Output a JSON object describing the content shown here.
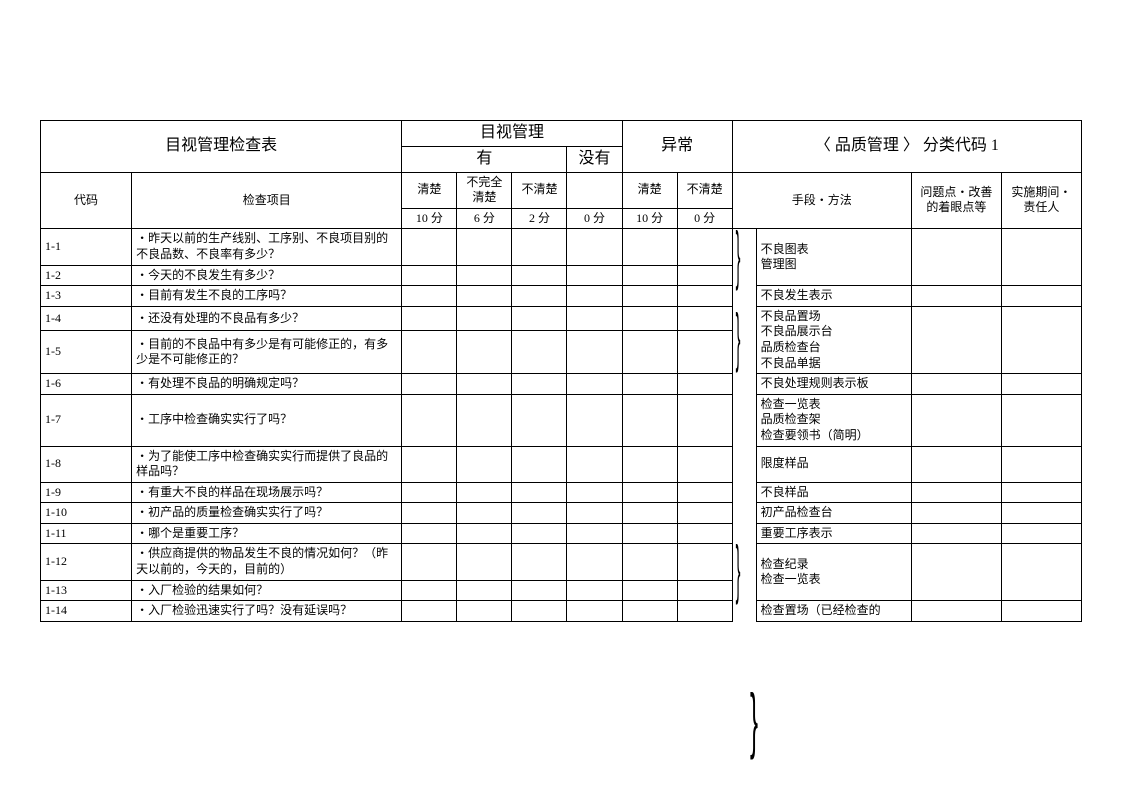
{
  "header": {
    "main_title": "目视管理检查表",
    "group1_top": "目视管理",
    "group1_yes": "有",
    "group1_no": "没有",
    "group2": "异常",
    "right_title": "〈 品质管理 〉  分类代码  1",
    "col_code": "代码",
    "col_item": "检查项目",
    "col_clear": "清楚",
    "col_partial": "不完全清楚",
    "col_unclear": "不清楚",
    "col_10pt": "10 分",
    "col_6pt": "6 分",
    "col_2pt": "2 分",
    "col_0pt": "0 分",
    "col_abn_clear": "清楚",
    "col_abn_unclear": "不清楚",
    "col_abn_10pt": "10 分",
    "col_abn_0pt": "0 分",
    "col_method": "手段・方法",
    "col_issue": "问题点・改善的着眼点等",
    "col_period": "实施期间・责任人"
  },
  "rows": [
    {
      "code": "1-1",
      "item": "・昨天以前的生产线别、工序别、不良项目别的不良品数、不良率有多少？",
      "method": "不良图表",
      "brace_start": true
    },
    {
      "code": "1-2",
      "item": "・今天的不良发生有多少？",
      "method": "管理图",
      "brace_end": true
    },
    {
      "code": "1-3",
      "item": "・目前有发生不良的工序吗？",
      "method": "不良发生表示"
    },
    {
      "code": "1-4",
      "item": "・还没有处理的不良品有多少？",
      "method": "不良品置场",
      "brace_start": true
    },
    {
      "code": "1-5",
      "item": "・目前的不良品中有多少是有可能修正的，有多少是不可能修正的？",
      "method": "不良品展示台\n品质检查台\n不良品单据",
      "brace_end": true
    },
    {
      "code": "1-6",
      "item": "・有处理不良品的明确规定吗？",
      "method": "不良处理规则表示板"
    },
    {
      "code": "1-7",
      "item": "・工序中检查确实实行了吗？",
      "method": "检查一览表\n品质检查架\n检查要领书（简明）"
    },
    {
      "code": "1-8",
      "item": "・为了能使工序中检查确实实行而提供了良品的样品吗？",
      "method": "限度样品"
    },
    {
      "code": "1-9",
      "item": "・有重大不良的样品在现场展示吗？",
      "method": "不良样品"
    },
    {
      "code": "1-10",
      "item": "・初产品的质量检查确实实行了吗？",
      "method": "初产品检查台"
    },
    {
      "code": "1-11",
      "item": "・哪个是重要工序？",
      "method": "重要工序表示"
    },
    {
      "code": "1-12",
      "item": "・供应商提供的物品发生不良的情况如何？（昨天以前的，今天的，目前的）",
      "method": "检查纪录",
      "brace_start": true
    },
    {
      "code": "1-13",
      "item": "・入厂检验的结果如何？",
      "method": "检查一览表",
      "brace_end": true
    },
    {
      "code": "1-14",
      "item": "・入厂检验迅速实行了吗？没有延误吗？",
      "method": "检查置场（已经检查的"
    }
  ]
}
